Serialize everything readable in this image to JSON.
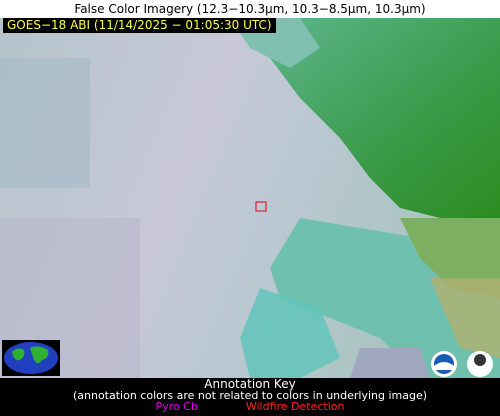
{
  "header": {
    "title": "False Color Imagery (12.3−10.3µm, 10.3−8.5µm, 10.3µm)"
  },
  "image": {
    "timestamp_label": "GOES−18 ABI (11/14/2025 − 01:05:30 UTC)"
  },
  "legend": {
    "title": "Annotation Key",
    "note": "(annotation colors are not related to colors in underlying image)",
    "items": [
      {
        "label": "Pyro Cb",
        "color": "#e000e0"
      },
      {
        "label": "Wildfire Detection",
        "color": "#ff2020"
      }
    ]
  }
}
